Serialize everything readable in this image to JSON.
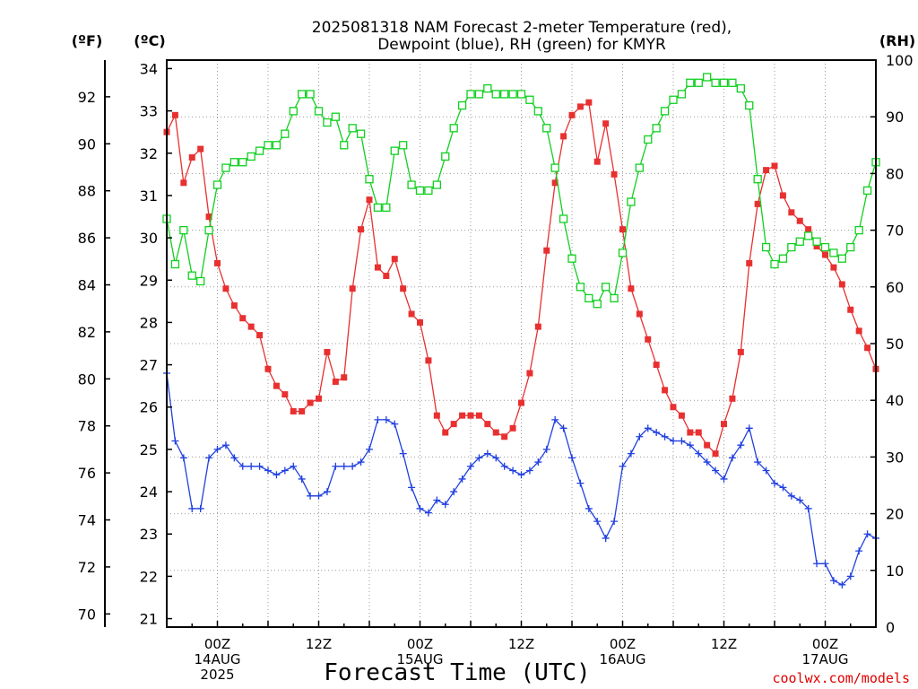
{
  "chart_data": {
    "type": "line",
    "title": [
      "2025081318 NAM Forecast 2-meter Temperature (red),",
      "Dewpoint (blue), RH (green) for KMYR"
    ],
    "xlabel": "Forecast Time (UTC)",
    "credit": "coolwx.com/models",
    "y_left_outer_label": "(ºF)",
    "y_left_inner_label": "(ºC)",
    "y_right_label": "(RH)",
    "y_c_lim": [
      20.8,
      34.2
    ],
    "y_rh_lim": [
      0,
      100
    ],
    "x_lim": [
      0,
      84
    ],
    "grid": true,
    "y_f_ticks": [
      "70",
      "72",
      "74",
      "76",
      "78",
      "80",
      "82",
      "84",
      "86",
      "88",
      "90",
      "92"
    ],
    "y_c_ticks": [
      "21",
      "22",
      "23",
      "24",
      "25",
      "26",
      "27",
      "28",
      "29",
      "30",
      "31",
      "32",
      "33",
      "34"
    ],
    "y_rh_ticks": [
      "0",
      "10",
      "20",
      "30",
      "40",
      "50",
      "60",
      "70",
      "80",
      "90",
      "100"
    ],
    "x_ticks": [
      {
        "x": 6,
        "lines": [
          "00Z",
          "14AUG",
          "2025"
        ]
      },
      {
        "x": 18,
        "lines": [
          "12Z"
        ]
      },
      {
        "x": 30,
        "lines": [
          "00Z",
          "15AUG"
        ]
      },
      {
        "x": 42,
        "lines": [
          "12Z"
        ]
      },
      {
        "x": 54,
        "lines": [
          "00Z",
          "16AUG"
        ]
      },
      {
        "x": 66,
        "lines": [
          "12Z"
        ]
      },
      {
        "x": 78,
        "lines": [
          "00Z",
          "17AUG"
        ]
      }
    ],
    "series": [
      {
        "name": "Temperature",
        "unit": "C",
        "color": "#e83030",
        "marker": "filled-square",
        "x": [
          0,
          1,
          2,
          3,
          4,
          5,
          6,
          7,
          8,
          9,
          10,
          11,
          12,
          13,
          14,
          15,
          16,
          17,
          18,
          19,
          20,
          21,
          22,
          23,
          24,
          25,
          26,
          27,
          28,
          29,
          30,
          31,
          32,
          33,
          34,
          35,
          36,
          37,
          38,
          39,
          40,
          41,
          42,
          43,
          44,
          45,
          46,
          47,
          48,
          49,
          50,
          51,
          52,
          53,
          54,
          55,
          56,
          57,
          58,
          59,
          60,
          61,
          62,
          63,
          64,
          65,
          66,
          67,
          68,
          69,
          70,
          71,
          72,
          73,
          74,
          75,
          76,
          77,
          78,
          79,
          80,
          81,
          82,
          83,
          84
        ],
        "values": [
          32.5,
          32.9,
          31.3,
          31.9,
          32.1,
          30.5,
          29.4,
          28.8,
          28.4,
          28.1,
          27.9,
          27.7,
          26.9,
          26.5,
          26.3,
          25.9,
          25.9,
          26.1,
          26.2,
          27.3,
          26.6,
          26.7,
          28.8,
          30.2,
          30.9,
          29.3,
          29.1,
          29.5,
          28.8,
          28.2,
          28.0,
          27.1,
          25.8,
          25.4,
          25.6,
          25.8,
          25.8,
          25.8,
          25.6,
          25.4,
          25.3,
          25.5,
          26.1,
          26.8,
          27.9,
          29.7,
          31.3,
          32.4,
          32.9,
          33.1,
          33.2,
          31.8,
          32.7,
          31.5,
          30.2,
          28.8,
          28.2,
          27.6,
          27.0,
          26.4,
          26.0,
          25.8,
          25.4,
          25.4,
          25.1,
          24.9,
          25.6,
          26.2,
          27.3,
          29.4,
          30.8,
          31.6,
          31.7,
          31.0,
          30.6,
          30.4,
          30.2,
          29.8,
          29.6,
          29.3,
          28.9,
          28.3,
          27.8,
          27.4,
          26.9
        ]
      },
      {
        "name": "Dewpoint",
        "unit": "C",
        "color": "#2040e0",
        "marker": "plus",
        "x": [
          0,
          1,
          2,
          3,
          4,
          5,
          6,
          7,
          8,
          9,
          10,
          11,
          12,
          13,
          14,
          15,
          16,
          17,
          18,
          19,
          20,
          21,
          22,
          23,
          24,
          25,
          26,
          27,
          28,
          29,
          30,
          31,
          32,
          33,
          34,
          35,
          36,
          37,
          38,
          39,
          40,
          41,
          42,
          43,
          44,
          45,
          46,
          47,
          48,
          49,
          50,
          51,
          52,
          53,
          54,
          55,
          56,
          57,
          58,
          59,
          60,
          61,
          62,
          63,
          64,
          65,
          66,
          67,
          68,
          69,
          70,
          71,
          72,
          73,
          74,
          75,
          76,
          77,
          78,
          79,
          80,
          81,
          82,
          83,
          84
        ],
        "values": [
          26.8,
          25.2,
          24.8,
          23.6,
          23.6,
          24.8,
          25.0,
          25.1,
          24.8,
          24.6,
          24.6,
          24.6,
          24.5,
          24.4,
          24.5,
          24.6,
          24.3,
          23.9,
          23.9,
          24.0,
          24.6,
          24.6,
          24.6,
          24.7,
          25.0,
          25.7,
          25.7,
          25.6,
          24.9,
          24.1,
          23.6,
          23.5,
          23.8,
          23.7,
          24.0,
          24.3,
          24.6,
          24.8,
          24.9,
          24.8,
          24.6,
          24.5,
          24.4,
          24.5,
          24.7,
          25.0,
          25.7,
          25.5,
          24.8,
          24.2,
          23.6,
          23.3,
          22.9,
          23.3,
          24.6,
          24.9,
          25.3,
          25.5,
          25.4,
          25.3,
          25.2,
          25.2,
          25.1,
          24.9,
          24.7,
          24.5,
          24.3,
          24.8,
          25.1,
          25.5,
          24.7,
          24.5,
          24.2,
          24.1,
          23.9,
          23.8,
          23.6,
          22.3,
          22.3,
          21.9,
          21.8,
          22.0,
          22.6,
          23.0,
          22.9
        ]
      },
      {
        "name": "RH",
        "unit": "%",
        "color": "#10d020",
        "marker": "open-square",
        "x": [
          0,
          1,
          2,
          3,
          4,
          5,
          6,
          7,
          8,
          9,
          10,
          11,
          12,
          13,
          14,
          15,
          16,
          17,
          18,
          19,
          20,
          21,
          22,
          23,
          24,
          25,
          26,
          27,
          28,
          29,
          30,
          31,
          32,
          33,
          34,
          35,
          36,
          37,
          38,
          39,
          40,
          41,
          42,
          43,
          44,
          45,
          46,
          47,
          48,
          49,
          50,
          51,
          52,
          53,
          54,
          55,
          56,
          57,
          58,
          59,
          60,
          61,
          62,
          63,
          64,
          65,
          66,
          67,
          68,
          69,
          70,
          71,
          72,
          73,
          74,
          75,
          76,
          77,
          78,
          79,
          80,
          81,
          82,
          83,
          84
        ],
        "values": [
          72,
          64,
          70,
          62,
          61,
          70,
          78,
          81,
          82,
          82,
          83,
          84,
          85,
          85,
          87,
          91,
          94,
          94,
          91,
          89,
          90,
          85,
          88,
          87,
          79,
          74,
          74,
          84,
          85,
          78,
          77,
          77,
          78,
          83,
          88,
          92,
          94,
          94,
          95,
          94,
          94,
          94,
          94,
          93,
          91,
          88,
          81,
          72,
          65,
          60,
          58,
          57,
          60,
          58,
          66,
          75,
          81,
          86,
          88,
          91,
          93,
          94,
          96,
          96,
          97,
          96,
          96,
          96,
          95,
          92,
          79,
          67,
          64,
          65,
          67,
          68,
          69,
          68,
          67,
          66,
          65,
          67,
          70,
          77,
          82
        ]
      }
    ]
  }
}
